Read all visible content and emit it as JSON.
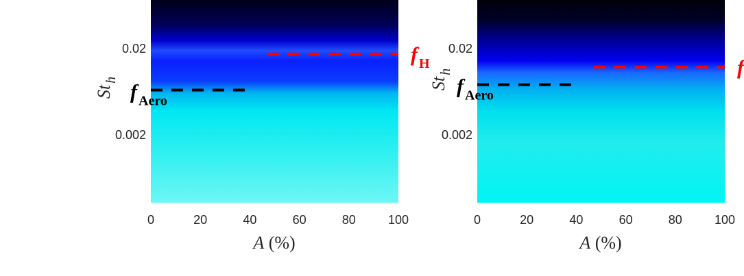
{
  "chart_data": [
    {
      "type": "heatmap",
      "title": "",
      "xlabel": "A (%)",
      "ylabel": "St_h",
      "xlim": [
        0,
        100
      ],
      "yscale": "log",
      "x_ticks": [
        "0",
        "20",
        "40",
        "60",
        "80",
        "100"
      ],
      "y_ticks": [
        "0.02",
        "0.002"
      ],
      "colormap": [
        "#000014",
        "#0000ff",
        "#00ffff"
      ],
      "markers": [
        {
          "label": "f",
          "subscript": "Aero",
          "color": "#000000",
          "x_range": [
            0,
            40
          ],
          "y": 0.0065
        },
        {
          "label": "f",
          "subscript": "H",
          "color": "#ff0000",
          "x_range": [
            47,
            100
          ],
          "y": 0.017
        }
      ]
    },
    {
      "type": "heatmap",
      "title": "",
      "xlabel": "A (%)",
      "ylabel": "St_h",
      "xlim": [
        0,
        100
      ],
      "yscale": "log",
      "x_ticks": [
        "0",
        "20",
        "40",
        "60",
        "80",
        "100"
      ],
      "y_ticks": [
        "0.02",
        "0.002"
      ],
      "colormap": [
        "#000014",
        "#0000ff",
        "#00ffff"
      ],
      "markers": [
        {
          "label": "f",
          "subscript": "Aero",
          "color": "#000000",
          "x_range": [
            0,
            40
          ],
          "y": 0.0075
        },
        {
          "label": "f",
          "subscript": "",
          "color": "#ff0000",
          "x_range": [
            47,
            100
          ],
          "y": 0.012
        }
      ]
    }
  ]
}
